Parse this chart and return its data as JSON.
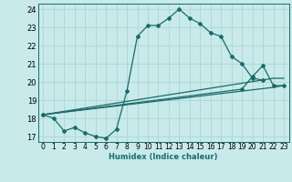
{
  "xlabel": "Humidex (Indice chaleur)",
  "ylabel": "",
  "background_color": "#c8eaea",
  "grid_color": "#b0d8d8",
  "line_color": "#1a6b6b",
  "xlim": [
    -0.5,
    23.5
  ],
  "ylim": [
    16.7,
    24.3
  ],
  "xticks": [
    0,
    1,
    2,
    3,
    4,
    5,
    6,
    7,
    8,
    9,
    10,
    11,
    12,
    13,
    14,
    15,
    16,
    17,
    18,
    19,
    20,
    21,
    22,
    23
  ],
  "yticks": [
    17,
    18,
    19,
    20,
    21,
    22,
    23,
    24
  ],
  "lines": [
    {
      "x": [
        0,
        1,
        2,
        3,
        4,
        5,
        6,
        7,
        8,
        9,
        10,
        11,
        12,
        13,
        14,
        15,
        16,
        17,
        18,
        19,
        20,
        21
      ],
      "y": [
        18.2,
        18.0,
        17.3,
        17.5,
        17.2,
        17.0,
        16.9,
        17.4,
        19.5,
        22.5,
        23.1,
        23.1,
        23.5,
        24.0,
        23.5,
        23.2,
        22.7,
        22.5,
        21.4,
        21.0,
        20.2,
        20.1
      ],
      "marker": true
    },
    {
      "x": [
        0,
        22,
        23
      ],
      "y": [
        18.2,
        19.7,
        19.8
      ],
      "marker": false
    },
    {
      "x": [
        0,
        22,
        23
      ],
      "y": [
        18.2,
        20.2,
        20.2
      ],
      "marker": false
    },
    {
      "x": [
        0,
        19,
        20,
        21,
        22,
        23
      ],
      "y": [
        18.2,
        19.6,
        20.3,
        20.9,
        19.8,
        19.8
      ],
      "marker": true
    }
  ]
}
